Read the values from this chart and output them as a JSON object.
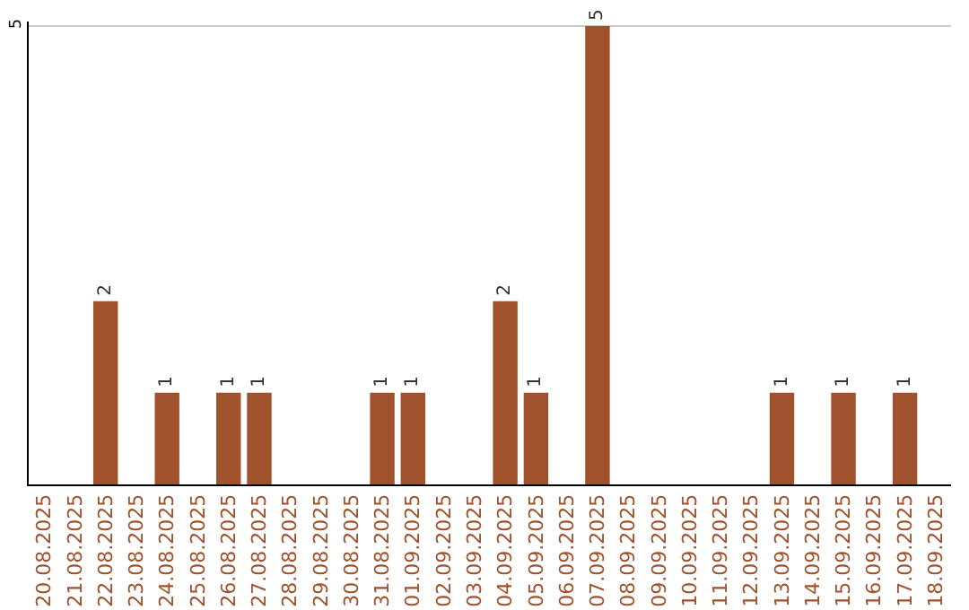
{
  "chart_data": {
    "type": "bar",
    "categories": [
      "20.08.2025",
      "21.08.2025",
      "22.08.2025",
      "23.08.2025",
      "24.08.2025",
      "25.08.2025",
      "26.08.2025",
      "27.08.2025",
      "28.08.2025",
      "29.08.2025",
      "30.08.2025",
      "31.08.2025",
      "01.09.2025",
      "02.09.2025",
      "03.09.2025",
      "04.09.2025",
      "05.09.2025",
      "06.09.2025",
      "07.09.2025",
      "08.09.2025",
      "09.09.2025",
      "10.09.2025",
      "11.09.2025",
      "12.09.2025",
      "13.09.2025",
      "14.09.2025",
      "15.09.2025",
      "16.09.2025",
      "17.09.2025",
      "18.09.2025"
    ],
    "values": [
      0,
      0,
      2,
      0,
      1,
      0,
      1,
      1,
      0,
      0,
      0,
      1,
      1,
      0,
      0,
      2,
      1,
      0,
      5,
      0,
      0,
      0,
      0,
      0,
      1,
      0,
      1,
      0,
      1,
      0
    ],
    "value_labels": [
      null,
      null,
      "2",
      null,
      "1",
      null,
      "1",
      "1",
      null,
      null,
      null,
      "1",
      "1",
      null,
      null,
      "2",
      "1",
      null,
      "5",
      null,
      null,
      null,
      null,
      null,
      "1",
      null,
      "1",
      null,
      "1",
      null
    ],
    "color": "#a0522d",
    "ylim": [
      0,
      5.05
    ],
    "yticks": [
      5
    ],
    "grid": "y"
  }
}
